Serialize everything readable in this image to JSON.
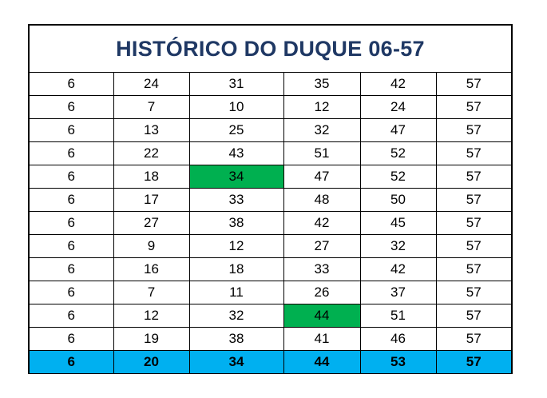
{
  "title": "HISTÓRICO DO DUQUE 06-57",
  "highlight_color": "#00b050",
  "total_color": "#00b0f0",
  "title_color": "#1f3864",
  "rows": [
    [
      "6",
      "24",
      "31",
      "35",
      "42",
      "57"
    ],
    [
      "6",
      "7",
      "10",
      "12",
      "24",
      "57"
    ],
    [
      "6",
      "13",
      "25",
      "32",
      "47",
      "57"
    ],
    [
      "6",
      "22",
      "43",
      "51",
      "52",
      "57"
    ],
    [
      "6",
      "18",
      "34",
      "47",
      "52",
      "57"
    ],
    [
      "6",
      "17",
      "33",
      "48",
      "50",
      "57"
    ],
    [
      "6",
      "27",
      "38",
      "42",
      "45",
      "57"
    ],
    [
      "6",
      "9",
      "12",
      "27",
      "32",
      "57"
    ],
    [
      "6",
      "16",
      "18",
      "33",
      "42",
      "57"
    ],
    [
      "6",
      "7",
      "11",
      "26",
      "37",
      "57"
    ],
    [
      "6",
      "12",
      "32",
      "44",
      "51",
      "57"
    ],
    [
      "6",
      "19",
      "38",
      "41",
      "46",
      "57"
    ]
  ],
  "highlighted_cells": [
    {
      "row": 4,
      "col": 2,
      "value": "34"
    },
    {
      "row": 10,
      "col": 3,
      "value": "44"
    }
  ],
  "total_row": [
    "6",
    "20",
    "34",
    "44",
    "53",
    "57"
  ]
}
